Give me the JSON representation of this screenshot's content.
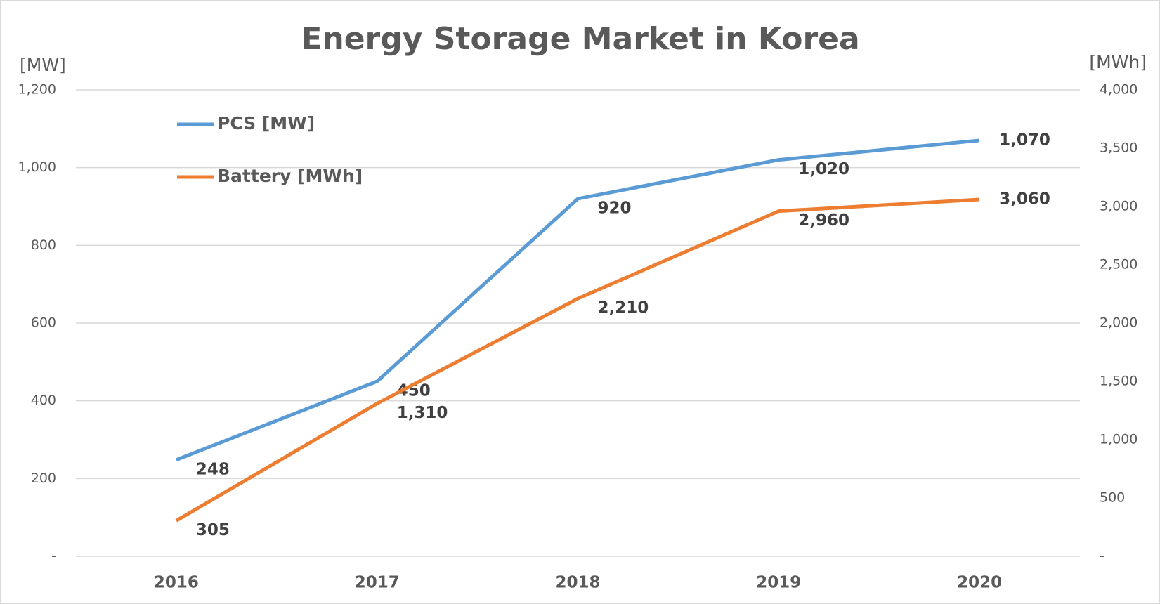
{
  "chart_data": {
    "type": "line",
    "title": "Energy Storage Market in Korea",
    "y_label": "[MW]",
    "y2_label": "[MWh]",
    "categories": [
      "2016",
      "2017",
      "2018",
      "2019",
      "2020"
    ],
    "series": [
      {
        "name": "PCS [MW]",
        "color": "#5b9bd5",
        "values": [
          248,
          450,
          920,
          1020,
          1070
        ],
        "value_labels": [
          "248",
          "450",
          "920",
          "1,020",
          "1,070"
        ]
      },
      {
        "name": "Battery [MWh]",
        "color": "#ed7d31",
        "axis": "y2",
        "values": [
          305,
          1310,
          2210,
          2960,
          3060
        ],
        "value_labels": [
          "305",
          "1,310",
          "2,210",
          "2,960",
          "3,060"
        ]
      }
    ],
    "ylim": [
      0,
      1200
    ],
    "yticks": [
      {
        "value": 0,
        "label": "-"
      },
      200,
      400,
      600,
      800,
      {
        "value": 1000,
        "label": "1,000"
      },
      {
        "value": 1200,
        "label": "1,200"
      }
    ],
    "y2lim": [
      0,
      4000
    ],
    "y2ticks": [
      {
        "value": 0,
        "label": "-"
      },
      500,
      {
        "value": 1000,
        "label": "1,000"
      },
      {
        "value": 1500,
        "label": "1,500"
      },
      {
        "value": 2000,
        "label": "2,000"
      },
      {
        "value": 2500,
        "label": "2,500"
      },
      {
        "value": 3000,
        "label": "3,000"
      },
      {
        "value": 3500,
        "label": "3,500"
      },
      {
        "value": 4000,
        "label": "4,000"
      }
    ],
    "grid": true,
    "legend": "top-left"
  }
}
